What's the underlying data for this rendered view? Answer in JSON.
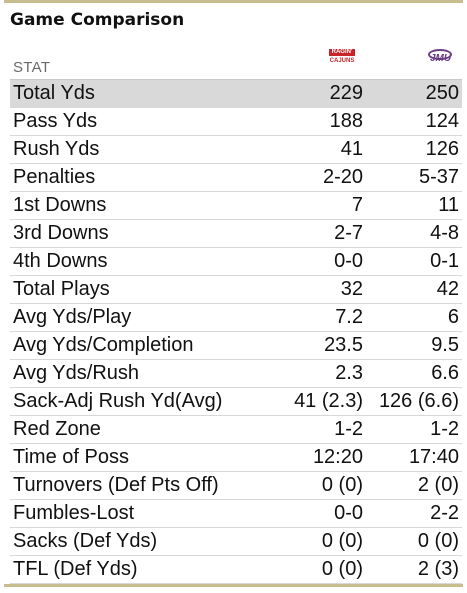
{
  "title": "Game Comparison",
  "header": {
    "stat_label": "STAT",
    "team_home": {
      "name": "Louisiana Ragin' Cajuns",
      "logo_top": "RAGIN'",
      "logo_bottom": "CAJUNS",
      "color": "#c9242b",
      "icon": "ragin-cajuns-logo"
    },
    "team_away": {
      "name": "James Madison Dukes",
      "logo_text": "JMU",
      "color": "#6b3f82",
      "icon": "jmu-logo"
    }
  },
  "highlight_color": "#d9d9d9",
  "rows": [
    {
      "stat": "Total Yds",
      "home": "229",
      "away": "250"
    },
    {
      "stat": "Pass Yds",
      "home": "188",
      "away": "124"
    },
    {
      "stat": "Rush Yds",
      "home": "41",
      "away": "126"
    },
    {
      "stat": "Penalties",
      "home": "2-20",
      "away": "5-37"
    },
    {
      "stat": "1st Downs",
      "home": "7",
      "away": "11"
    },
    {
      "stat": "3rd Downs",
      "home": "2-7",
      "away": "4-8"
    },
    {
      "stat": "4th Downs",
      "home": "0-0",
      "away": "0-1"
    },
    {
      "stat": "Total Plays",
      "home": "32",
      "away": "42"
    },
    {
      "stat": "Avg Yds/Play",
      "home": "7.2",
      "away": "6"
    },
    {
      "stat": "Avg Yds/Completion",
      "home": "23.5",
      "away": "9.5"
    },
    {
      "stat": "Avg Yds/Rush",
      "home": "2.3",
      "away": "6.6"
    },
    {
      "stat": "Sack-Adj Rush Yd(Avg)",
      "home": "41 (2.3)",
      "away": "126 (6.6)"
    },
    {
      "stat": "Red Zone",
      "home": "1-2",
      "away": "1-2"
    },
    {
      "stat": "Time of Poss",
      "home": "12:20",
      "away": "17:40"
    },
    {
      "stat": "Turnovers (Def Pts Off)",
      "home": "0 (0)",
      "away": "2 (0)"
    },
    {
      "stat": "Fumbles-Lost",
      "home": "0-0",
      "away": "2-2"
    },
    {
      "stat": "Sacks (Def Yds)",
      "home": "0 (0)",
      "away": "0 (0)"
    },
    {
      "stat": "TFL (Def Yds)",
      "home": "0 (0)",
      "away": "2 (3)"
    }
  ]
}
